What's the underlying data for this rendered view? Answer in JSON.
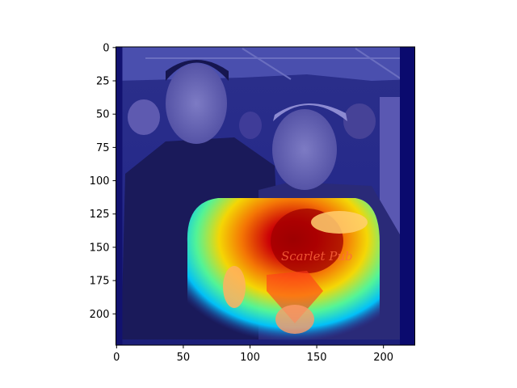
{
  "chart_data": {
    "type": "heatmap",
    "title": "",
    "xlabel": "",
    "ylabel": "",
    "xlim": [
      -0.5,
      223.5
    ],
    "ylim": [
      223.5,
      -0.5
    ],
    "x_ticks": [
      0,
      50,
      100,
      150,
      200
    ],
    "y_ticks": [
      0,
      25,
      50,
      75,
      100,
      125,
      150,
      175,
      200
    ],
    "overlay": "heatmap blended over photograph",
    "colormap": "jet",
    "hotspot": {
      "x": 140,
      "y": 145
    },
    "colors": {
      "background": "#ffffff",
      "cold": "#00008b",
      "mid": "#00c8ff",
      "warm": "#ffdd00",
      "hot": "#c80000"
    }
  }
}
